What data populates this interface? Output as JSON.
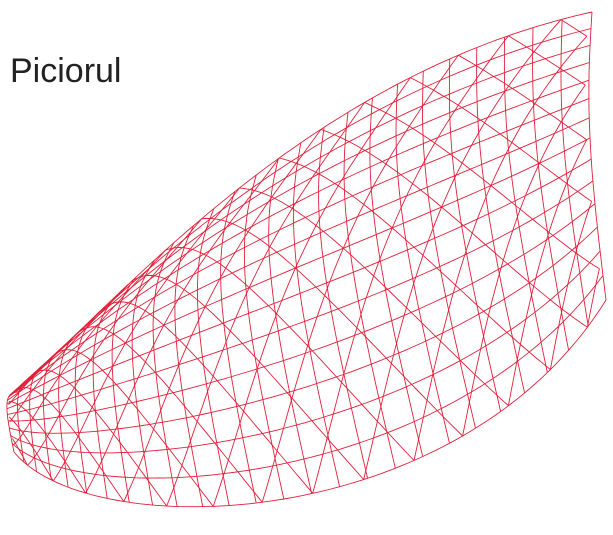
{
  "title": "Piciorul"
}
